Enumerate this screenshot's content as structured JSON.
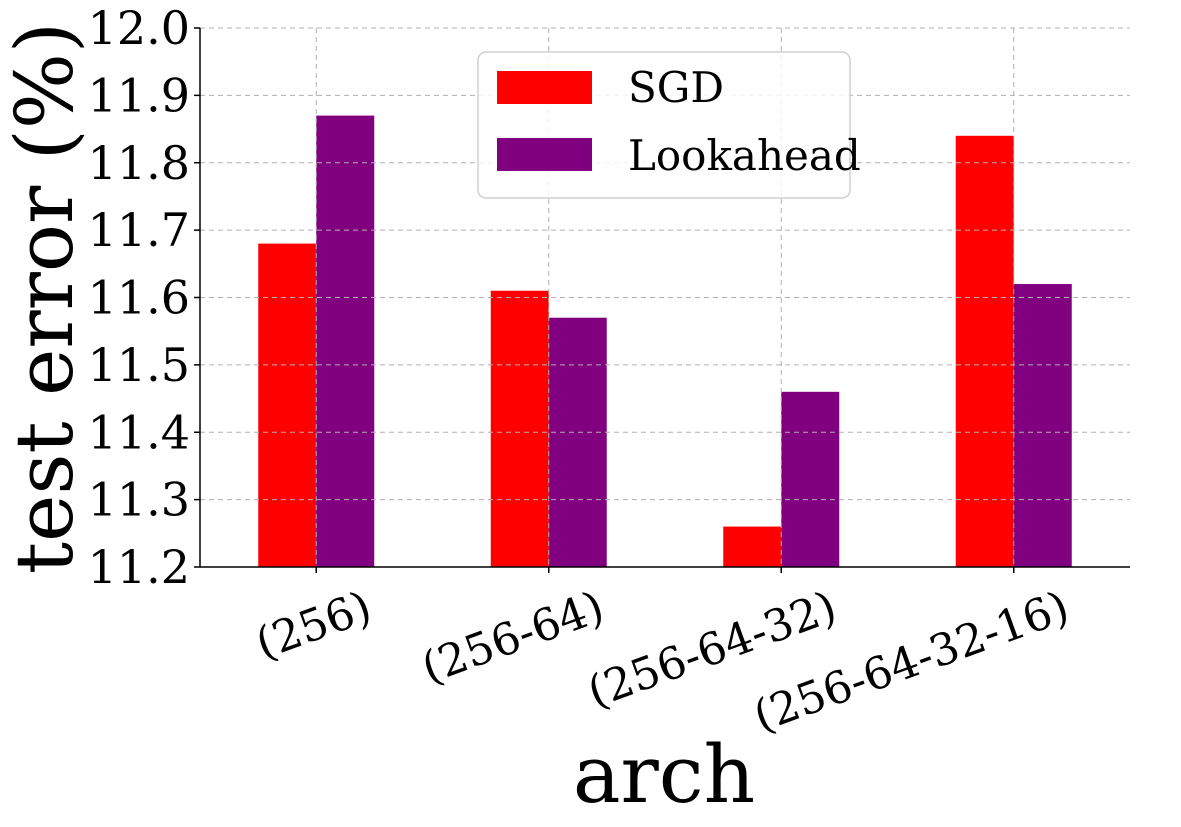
{
  "chart_data": {
    "type": "bar",
    "title": "",
    "xlabel": "arch",
    "ylabel": "test error (%)",
    "categories": [
      "(256)",
      "(256-64)",
      "(256-64-32)",
      "(256-64-32-16)"
    ],
    "series": [
      {
        "name": "SGD",
        "color": "#ff0000",
        "values": [
          11.68,
          11.61,
          11.26,
          11.84
        ]
      },
      {
        "name": "Lookahead",
        "color": "#800080",
        "values": [
          11.87,
          11.57,
          11.46,
          11.62
        ]
      }
    ],
    "ylim": [
      11.2,
      12.0
    ],
    "yticks": [
      "11.2",
      "11.3",
      "11.4",
      "11.5",
      "11.6",
      "11.7",
      "11.8",
      "11.9",
      "12.0"
    ],
    "grid": true,
    "legend_position": "top-center"
  }
}
